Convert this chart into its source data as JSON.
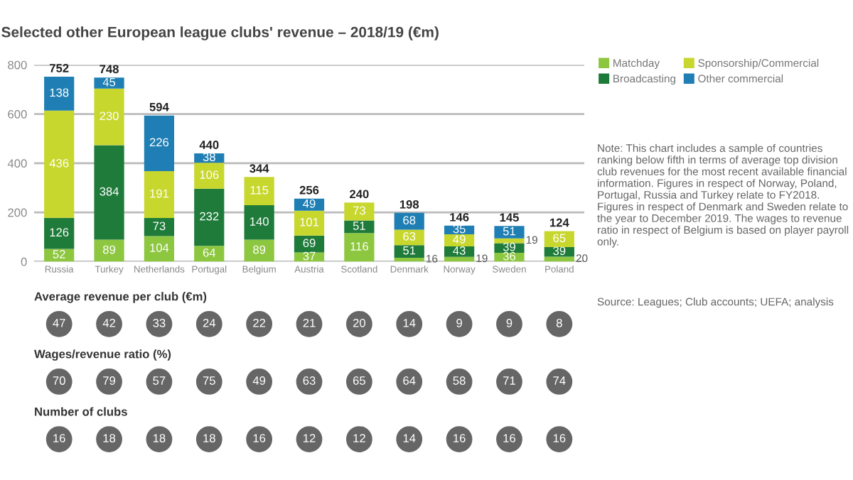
{
  "chart_data": [
    {
      "type": "bar",
      "title": "Selected other European league clubs' revenue – 2018/19 (€m)",
      "stacked": true,
      "categories": [
        "Russia",
        "Turkey",
        "Netherlands",
        "Portugal",
        "Belgium",
        "Austria",
        "Scotland",
        "Denmark",
        "Norway",
        "Sweden",
        "Poland"
      ],
      "series": [
        {
          "name": "Matchday",
          "color": "#8dc63f",
          "values": [
            52,
            89,
            104,
            64,
            89,
            37,
            116,
            16,
            19,
            36,
            20
          ]
        },
        {
          "name": "Broadcasting",
          "color": "#1e7b3a",
          "values": [
            126,
            384,
            73,
            232,
            140,
            69,
            51,
            51,
            43,
            39,
            39
          ]
        },
        {
          "name": "Sponsorship/Commercial",
          "color": "#c8d72e",
          "values": [
            436,
            230,
            191,
            106,
            115,
            101,
            73,
            63,
            49,
            19,
            65
          ]
        },
        {
          "name": "Other commercial",
          "color": "#1f7fb4",
          "values": [
            138,
            45,
            226,
            38,
            null,
            49,
            null,
            68,
            35,
            51,
            null
          ]
        }
      ],
      "data_labels": true,
      "totals": [
        "752",
        "748",
        "594",
        "440",
        "344",
        "256",
        "240",
        "198",
        "146",
        "145",
        "124"
      ],
      "ylim": [
        0,
        800
      ],
      "yticks": [
        0,
        200,
        400,
        600,
        800
      ],
      "grid": "y",
      "legend": "top right",
      "annotations": [
        "Note: This chart includes a sample of countries ranking below fifth in terms of average top division club revenues for the most recent available financial information. Figures in respect of Norway, Poland, Portugal, Russia and Turkey relate to FY2018. Figures in respect of Denmark and Sweden relate to the year to December 2019. The wages to revenue ratio in respect of Belgium is based on player payroll only.",
        "Source: Leagues; Club accounts; UEFA; analysis"
      ]
    },
    {
      "type": "other",
      "title": "Average revenue per club (€m)",
      "color": "#666666",
      "data_labels": true,
      "values": [
        47,
        42,
        33,
        24,
        22,
        21,
        20,
        14,
        9,
        9,
        8
      ]
    },
    {
      "type": "other",
      "title": "Wages/revenue ratio (%)",
      "color": "#666666",
      "data_labels": true,
      "values": [
        70,
        79,
        57,
        75,
        49,
        63,
        65,
        64,
        58,
        71,
        74
      ]
    },
    {
      "type": "other",
      "title": "Number of clubs",
      "color": "#666666",
      "data_labels": true,
      "values": [
        16,
        18,
        18,
        18,
        16,
        12,
        12,
        14,
        16,
        16,
        16
      ]
    }
  ]
}
